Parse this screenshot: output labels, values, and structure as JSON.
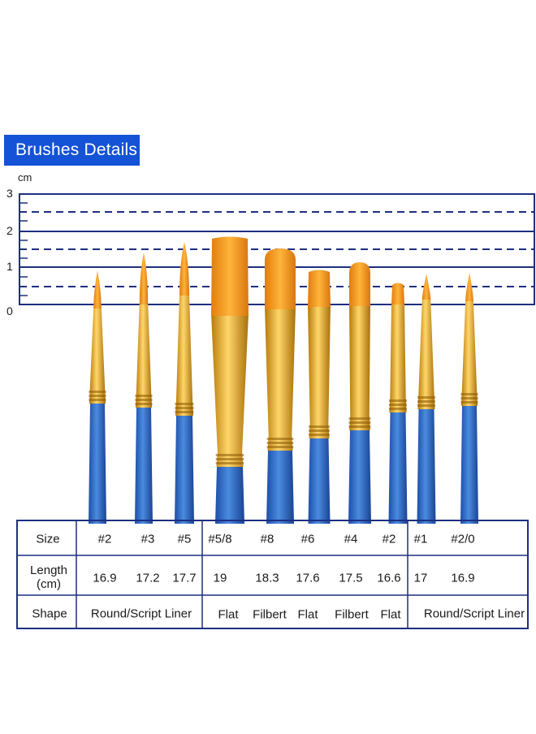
{
  "title": "Brushes Details",
  "ruler": {
    "unit": "cm",
    "ticks": [
      "3",
      "2",
      "1",
      "0"
    ]
  },
  "colors": {
    "banner": "#1452d6",
    "ruler_line": "#1e2f80",
    "handle": "#2a66c9",
    "ferrule": "#e0a01a",
    "bristle": "#f29a1c"
  },
  "table": {
    "row_labels": {
      "size": "Size",
      "length": "Length\n(cm)",
      "shape": "Shape"
    },
    "sizes": [
      "#2",
      "#3",
      "#5",
      "#5/8",
      "#8",
      "#6",
      "#4",
      "#2",
      "#1",
      "#2/0"
    ],
    "lengths": [
      "16.9",
      "17.2",
      "17.7",
      "19",
      "18.3",
      "17.6",
      "17.5",
      "16.6",
      "17",
      "16.9"
    ],
    "shapes": [
      "Round/Script Liner",
      "Flat",
      "Filbert",
      "Flat",
      "Filbert",
      "Flat",
      "Round/Script Liner"
    ]
  }
}
